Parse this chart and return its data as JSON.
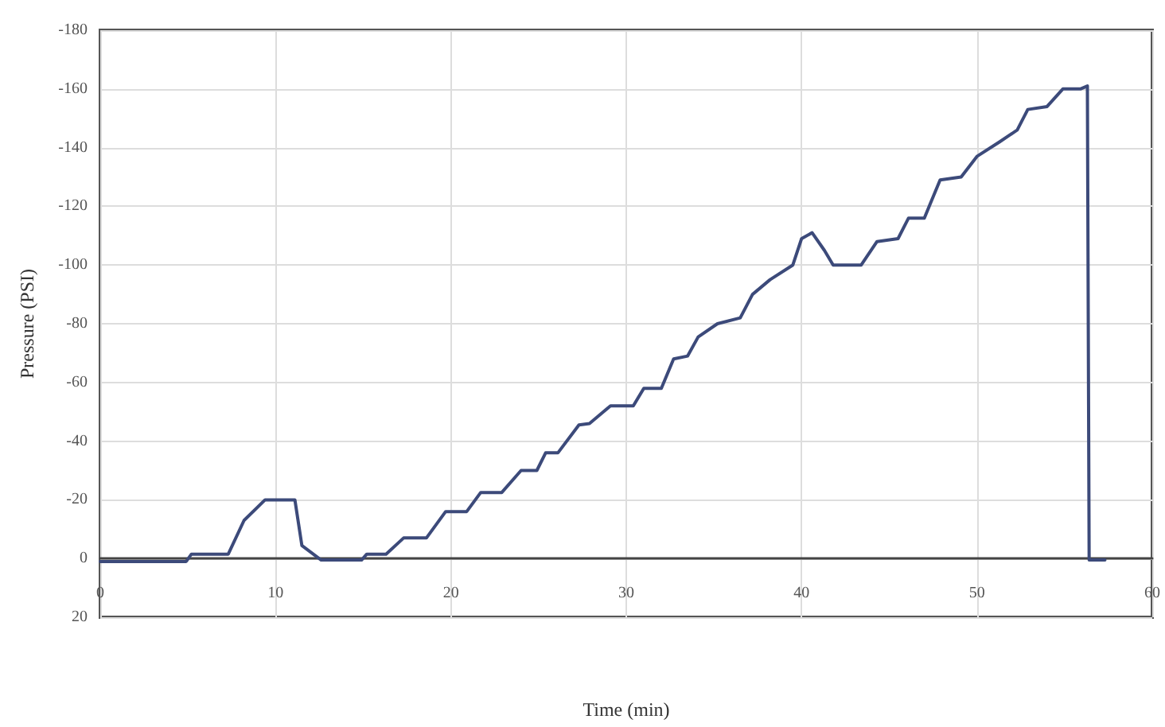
{
  "chart_data": {
    "type": "line",
    "xlabel": "Time (min)",
    "ylabel": "Pressure (PSI)",
    "xlim": [
      0,
      60
    ],
    "xticks": [
      0,
      10,
      20,
      30,
      40,
      50,
      60
    ],
    "ylim": [
      20,
      -180
    ],
    "yticks": [
      20,
      0,
      -20,
      -40,
      -60,
      -80,
      -100,
      -120,
      -140,
      -160,
      -180
    ],
    "grid": true,
    "marker": "none",
    "line_style": "solid",
    "series": [
      {
        "color": "#3c4a7a",
        "x": [
          0,
          4.9,
          5.2,
          7.3,
          8.2,
          9.4,
          11.1,
          11.5,
          12.6,
          14.9,
          15.2,
          16.3,
          17.3,
          18.6,
          19.7,
          20.9,
          21.7,
          22.9,
          24,
          24.9,
          25.4,
          26.1,
          27.3,
          27.9,
          29.1,
          30.4,
          31,
          32,
          32.7,
          33.5,
          34.1,
          35.2,
          36.5,
          37.2,
          38.2,
          39.5,
          40,
          40.6,
          41.3,
          41.8,
          43.4,
          44.3,
          45.5,
          46.1,
          47,
          47.9,
          49.1,
          50,
          51.3,
          52.3,
          52.9,
          54,
          54.9,
          55.9,
          56.3,
          56.4,
          57.3
        ],
        "values": [
          1,
          1,
          -1.5,
          -1.5,
          -13,
          -20,
          -20,
          -4.4,
          0.5,
          0.5,
          -1.5,
          -1.5,
          -7,
          -7,
          -16,
          -16,
          -22.5,
          -22.5,
          -30,
          -30,
          -36,
          -36,
          -45.5,
          -46,
          -52,
          -52,
          -58,
          -58,
          -68,
          -69,
          -75.5,
          -80,
          -82,
          -90,
          -95,
          -100,
          -109,
          -111,
          -105,
          -100,
          -100,
          -108,
          -109,
          -116,
          -116,
          -129,
          -130,
          -137,
          -142,
          -146,
          -153,
          -154,
          -160,
          -160,
          -161,
          0.5,
          0.5
        ]
      }
    ]
  }
}
